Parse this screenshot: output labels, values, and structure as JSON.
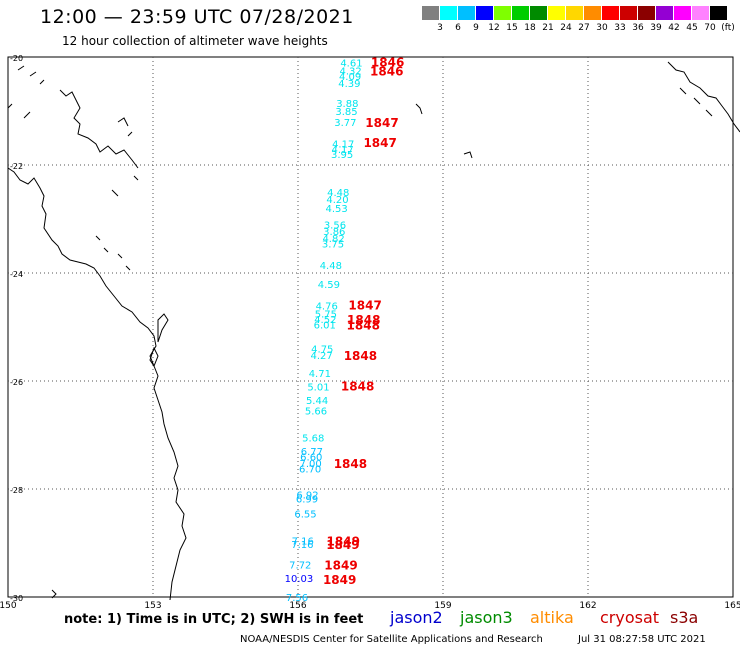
{
  "header": {
    "title": "12:00 — 23:59 UTC 07/28/2021",
    "subtitle": "12 hour collection of altimeter wave heights"
  },
  "legend": {
    "colors": [
      "#808080",
      "#00ffff",
      "#00bfff",
      "#0000ff",
      "#7fff00",
      "#00cd00",
      "#008b00",
      "#ffff00",
      "#ffd700",
      "#ff8c00",
      "#ff0000",
      "#cd0000",
      "#8b0000",
      "#9400d3",
      "#ff00ff",
      "#ff82ff",
      "#000000"
    ],
    "labels": [
      "3",
      "6",
      "9",
      "12",
      "15",
      "18",
      "21",
      "24",
      "27",
      "30",
      "33",
      "36",
      "39",
      "42",
      "45",
      "70",
      "(ft)"
    ]
  },
  "map": {
    "lat_labels": [
      "-20",
      "-22",
      "-24",
      "-26",
      "-28",
      "-30"
    ],
    "lon_labels": [
      "150",
      "153",
      "156",
      "159",
      "162",
      "165"
    ],
    "wave_heights": [
      {
        "v": "4.61",
        "lat": -20.1,
        "c": "#00e5ee"
      },
      {
        "v": "4.32",
        "lat": -20.25,
        "c": "#00e5ee"
      },
      {
        "v": "4.09",
        "lat": -20.35,
        "c": "#00e5ee"
      },
      {
        "v": "4.39",
        "lat": -20.48,
        "c": "#00e5ee"
      },
      {
        "v": "3.88",
        "lat": -20.85,
        "c": "#00e5ee"
      },
      {
        "v": "3.85",
        "lat": -21.0,
        "c": "#00e5ee"
      },
      {
        "v": "3.77",
        "lat": -21.2,
        "c": "#00e5ee"
      },
      {
        "v": "4.17",
        "lat": -21.6,
        "c": "#00e5ee"
      },
      {
        "v": "4.17",
        "lat": -21.7,
        "c": "#00e5ee"
      },
      {
        "v": "3.95",
        "lat": -21.8,
        "c": "#00e5ee"
      },
      {
        "v": "4.48",
        "lat": -22.5,
        "c": "#00e5ee"
      },
      {
        "v": "4.20",
        "lat": -22.63,
        "c": "#00e5ee"
      },
      {
        "v": "4.53",
        "lat": -22.8,
        "c": "#00e5ee"
      },
      {
        "v": "3.56",
        "lat": -23.1,
        "c": "#00e5ee"
      },
      {
        "v": "3.86",
        "lat": -23.22,
        "c": "#00e5ee"
      },
      {
        "v": "4.82",
        "lat": -23.35,
        "c": "#00e5ee"
      },
      {
        "v": "3.75",
        "lat": -23.45,
        "c": "#00e5ee"
      },
      {
        "v": "4.48",
        "lat": -23.85,
        "c": "#00e5ee"
      },
      {
        "v": "4.59",
        "lat": -24.2,
        "c": "#00e5ee"
      },
      {
        "v": "4.76",
        "lat": -24.6,
        "c": "#00e5ee"
      },
      {
        "v": "5.75",
        "lat": -24.75,
        "c": "#00e5ee"
      },
      {
        "v": "4.52",
        "lat": -24.85,
        "c": "#00e5ee"
      },
      {
        "v": "6.01",
        "lat": -24.95,
        "c": "#00e5ee"
      },
      {
        "v": "4.75",
        "lat": -25.4,
        "c": "#00e5ee"
      },
      {
        "v": "4.27",
        "lat": -25.52,
        "c": "#00e5ee"
      },
      {
        "v": "4.71",
        "lat": -25.85,
        "c": "#00e5ee"
      },
      {
        "v": "5.01",
        "lat": -26.1,
        "c": "#00e5ee"
      },
      {
        "v": "5.44",
        "lat": -26.35,
        "c": "#00e5ee"
      },
      {
        "v": "5.66",
        "lat": -26.55,
        "c": "#00e5ee"
      },
      {
        "v": "5.68",
        "lat": -27.05,
        "c": "#00e5ee"
      },
      {
        "v": "6.77",
        "lat": -27.3,
        "c": "#00bfff"
      },
      {
        "v": "6.60",
        "lat": -27.4,
        "c": "#00bfff"
      },
      {
        "v": "7.00",
        "lat": -27.52,
        "c": "#00bfff"
      },
      {
        "v": "6.70",
        "lat": -27.62,
        "c": "#00bfff"
      },
      {
        "v": "6.92",
        "lat": -28.1,
        "c": "#00bfff"
      },
      {
        "v": "6.99",
        "lat": -28.18,
        "c": "#00bfff"
      },
      {
        "v": "6.55",
        "lat": -28.45,
        "c": "#00bfff"
      },
      {
        "v": "7.16",
        "lat": -28.95,
        "c": "#00bfff"
      },
      {
        "v": "7.16",
        "lat": -29.02,
        "c": "#00bfff"
      },
      {
        "v": "7.72",
        "lat": -29.4,
        "c": "#00bfff"
      },
      {
        "v": "10.03",
        "lat": -29.65,
        "c": "#0000ff"
      },
      {
        "v": "7.56",
        "lat": -30.0,
        "c": "#00bfff"
      }
    ],
    "pass_labels": [
      {
        "v": "1846",
        "lat": -20.08
      },
      {
        "v": "1846",
        "lat": -20.25
      },
      {
        "v": "1847",
        "lat": -21.2
      },
      {
        "v": "1847",
        "lat": -21.57
      },
      {
        "v": "1847",
        "lat": -24.58
      },
      {
        "v": "1848",
        "lat": -24.85
      },
      {
        "v": "1848",
        "lat": -24.95
      },
      {
        "v": "1848",
        "lat": -25.52
      },
      {
        "v": "1848",
        "lat": -26.08
      },
      {
        "v": "1848",
        "lat": -27.52
      },
      {
        "v": "1849",
        "lat": -28.95
      },
      {
        "v": "1849",
        "lat": -29.02
      },
      {
        "v": "1849",
        "lat": -29.4
      },
      {
        "v": "1849",
        "lat": -29.67
      }
    ]
  },
  "footer": {
    "note": "note:  1) Time is in UTC;  2) SWH is in feet",
    "satellites": [
      {
        "name": "jason2",
        "color": "#0000cd"
      },
      {
        "name": "jason3",
        "color": "#008b00"
      },
      {
        "name": "altika",
        "color": "#ff8c00"
      },
      {
        "name": "cryosat",
        "color": "#cd0000"
      },
      {
        "name": "s3a",
        "color": "#8b0000"
      }
    ],
    "credit": "NOAA/NESDIS Center for Satellite Applications and Research",
    "timestamp": "Jul 31 08:27:58 UTC 2021"
  }
}
